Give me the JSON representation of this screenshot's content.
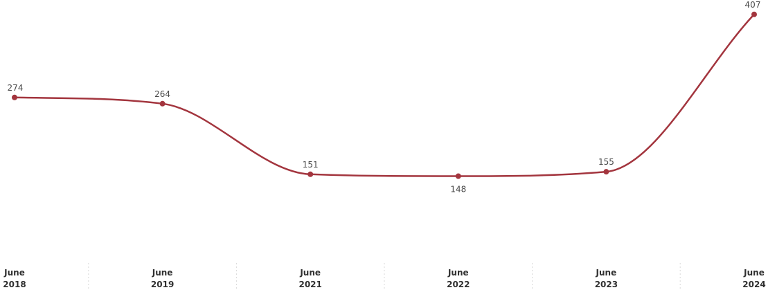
{
  "chart_data": {
    "type": "line",
    "title": "",
    "xlabel": "",
    "ylabel": "",
    "line_color": "#a3353e",
    "categories": [
      {
        "month": "June",
        "year": "2018"
      },
      {
        "month": "June",
        "year": "2019"
      },
      {
        "month": "June",
        "year": "2021"
      },
      {
        "month": "June",
        "year": "2022"
      },
      {
        "month": "June",
        "year": "2023"
      },
      {
        "month": "June",
        "year": "2024"
      }
    ],
    "series": [
      {
        "values": [
          274,
          264,
          151,
          148,
          155,
          407
        ]
      }
    ],
    "data_labels": [
      "274",
      "264",
      "151",
      "148",
      "155",
      "407"
    ],
    "label_position": [
      "above",
      "above",
      "above",
      "below",
      "above",
      "above"
    ],
    "ylim": [
      20,
      430
    ],
    "grid": false,
    "legend": "none"
  }
}
